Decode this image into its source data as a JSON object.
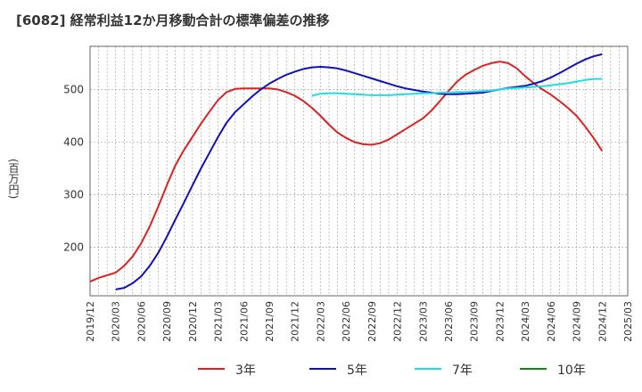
{
  "chart_data": {
    "type": "line",
    "title": "[6082]  経常利益12か月移動合計の標準偏差の推移",
    "ylabel": "(百万円)",
    "xlabel": "",
    "ylim": [
      108,
      582
    ],
    "yticks": [
      200,
      300,
      400,
      500
    ],
    "xticks": [
      "2019/12",
      "2020/03",
      "2020/06",
      "2020/09",
      "2020/12",
      "2021/03",
      "2021/06",
      "2021/09",
      "2021/12",
      "2022/03",
      "2022/06",
      "2022/09",
      "2022/12",
      "2023/03",
      "2023/06",
      "2023/09",
      "2023/12",
      "2024/03",
      "2024/06",
      "2024/09",
      "2024/12",
      "2025/03"
    ],
    "grid": true,
    "legend_position": "bottom",
    "series": [
      {
        "name": "3年",
        "color": "#dd2222",
        "x": [
          "2019/12",
          "2020/01",
          "2020/02",
          "2020/03",
          "2020/04",
          "2020/05",
          "2020/06",
          "2020/07",
          "2020/08",
          "2020/09",
          "2020/10",
          "2020/11",
          "2020/12",
          "2021/01",
          "2021/02",
          "2021/03",
          "2021/04",
          "2021/05",
          "2021/06",
          "2021/07",
          "2021/08",
          "2021/09",
          "2021/10",
          "2021/11",
          "2021/12",
          "2022/01",
          "2022/02",
          "2022/03",
          "2022/04",
          "2022/05",
          "2022/06",
          "2022/07",
          "2022/08",
          "2022/09",
          "2022/10",
          "2022/11",
          "2022/12",
          "2023/01",
          "2023/02",
          "2023/03",
          "2023/04",
          "2023/05",
          "2023/06",
          "2023/07",
          "2023/08",
          "2023/09",
          "2023/10",
          "2023/11",
          "2023/12",
          "2024/01",
          "2024/02",
          "2024/03",
          "2024/04",
          "2024/05",
          "2024/06",
          "2024/07",
          "2024/08",
          "2024/09",
          "2024/10",
          "2024/11",
          "2024/12"
        ],
        "values": [
          135,
          142,
          147,
          152,
          165,
          183,
          208,
          240,
          278,
          318,
          356,
          385,
          410,
          435,
          458,
          480,
          495,
          501,
          502,
          502,
          502,
          502,
          500,
          495,
          488,
          478,
          465,
          450,
          433,
          418,
          408,
          400,
          396,
          395,
          398,
          405,
          415,
          425,
          435,
          445,
          460,
          478,
          497,
          515,
          528,
          537,
          545,
          550,
          553,
          550,
          540,
          525,
          512,
          500,
          490,
          478,
          465,
          450,
          430,
          408,
          383
        ]
      },
      {
        "name": "5年",
        "color": "#1111bb",
        "x": [
          "2020/03",
          "2020/04",
          "2020/05",
          "2020/06",
          "2020/07",
          "2020/08",
          "2020/09",
          "2020/10",
          "2020/11",
          "2020/12",
          "2021/01",
          "2021/02",
          "2021/03",
          "2021/04",
          "2021/05",
          "2021/06",
          "2021/07",
          "2021/08",
          "2021/09",
          "2021/10",
          "2021/11",
          "2021/12",
          "2022/01",
          "2022/02",
          "2022/03",
          "2022/04",
          "2022/05",
          "2022/06",
          "2022/07",
          "2022/08",
          "2022/09",
          "2022/10",
          "2022/11",
          "2022/12",
          "2023/01",
          "2023/02",
          "2023/03",
          "2023/04",
          "2023/05",
          "2023/06",
          "2023/07",
          "2023/08",
          "2023/09",
          "2023/10",
          "2023/11",
          "2023/12",
          "2024/01",
          "2024/02",
          "2024/03",
          "2024/04",
          "2024/05",
          "2024/06",
          "2024/07",
          "2024/08",
          "2024/09",
          "2024/10",
          "2024/11",
          "2024/12"
        ],
        "values": [
          120,
          123,
          132,
          145,
          165,
          190,
          220,
          253,
          285,
          318,
          350,
          380,
          410,
          437,
          457,
          472,
          487,
          500,
          511,
          520,
          528,
          534,
          539,
          542,
          543,
          542,
          540,
          536,
          531,
          526,
          521,
          516,
          511,
          506,
          502,
          499,
          496,
          494,
          492,
          491,
          491,
          492,
          493,
          494,
          497,
          500,
          503,
          505,
          507,
          511,
          516,
          523,
          531,
          540,
          549,
          557,
          563,
          567
        ]
      },
      {
        "name": "7年",
        "color": "#22dddd",
        "x": [
          "2022/02",
          "2022/03",
          "2022/04",
          "2022/05",
          "2022/06",
          "2022/07",
          "2022/08",
          "2022/09",
          "2022/10",
          "2022/11",
          "2022/12",
          "2023/01",
          "2023/02",
          "2023/03",
          "2023/04",
          "2023/05",
          "2023/06",
          "2023/07",
          "2023/08",
          "2023/09",
          "2023/10",
          "2023/11",
          "2023/12",
          "2024/01",
          "2024/02",
          "2024/03",
          "2024/04",
          "2024/05",
          "2024/06",
          "2024/07",
          "2024/08",
          "2024/09",
          "2024/10",
          "2024/11",
          "2024/12"
        ],
        "values": [
          488,
          492,
          493,
          493,
          492,
          491,
          490,
          489,
          489,
          489,
          490,
          491,
          492,
          493,
          493,
          494,
          494,
          495,
          495,
          496,
          497,
          498,
          500,
          502,
          503,
          504,
          505,
          506,
          508,
          510,
          512,
          515,
          518,
          520,
          520
        ]
      },
      {
        "name": "10年",
        "color": "#118811",
        "x": [],
        "values": []
      }
    ]
  }
}
